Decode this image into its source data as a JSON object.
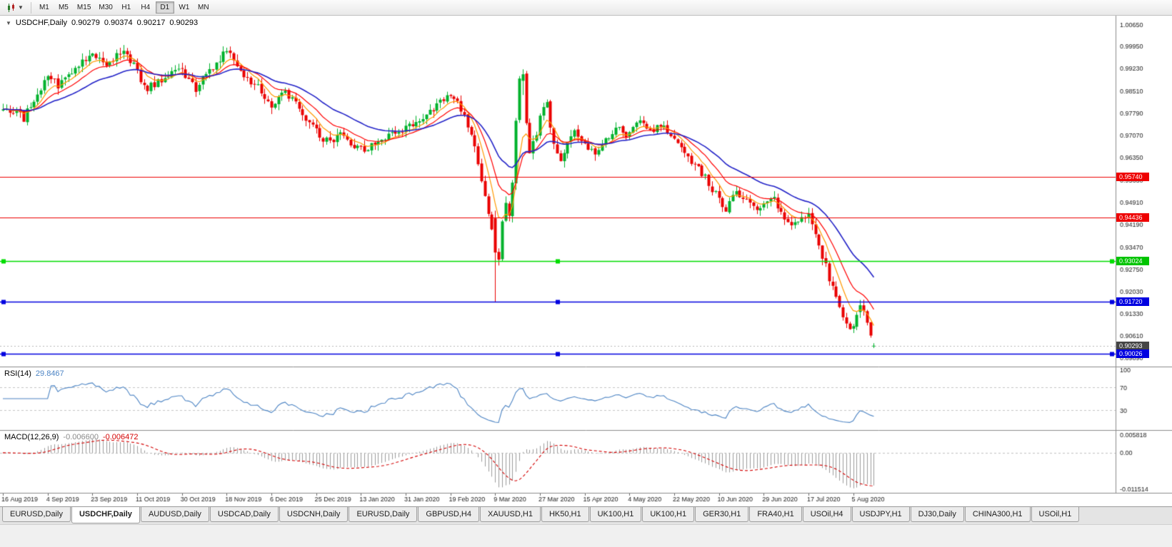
{
  "toolbar": {
    "timeframes": [
      "M1",
      "M5",
      "M15",
      "M30",
      "H1",
      "H4",
      "D1",
      "W1",
      "MN"
    ],
    "active_timeframe": "D1"
  },
  "chart_header": {
    "symbol": "USDCHF,Daily",
    "open": "0.90279",
    "high": "0.90374",
    "low": "0.90217",
    "close": "0.90293"
  },
  "price_axis": {
    "ticks": [
      "1.00650",
      "0.99950",
      "0.99230",
      "0.98510",
      "0.97790",
      "0.97070",
      "0.96350",
      "0.95630",
      "0.94910",
      "0.94190",
      "0.93470",
      "0.92750",
      "0.92030",
      "0.91330",
      "0.90610",
      "0.89890"
    ],
    "badges": [
      {
        "value": "0.95740",
        "color": "#EE0000",
        "kind": "horizontal-line"
      },
      {
        "value": "0.94436",
        "color": "#EE0000",
        "kind": "horizontal-line"
      },
      {
        "value": "0.93024",
        "color": "#00C400",
        "kind": "horizontal-line"
      },
      {
        "value": "0.91720",
        "color": "#0000E0",
        "kind": "horizontal-line"
      },
      {
        "value": "0.90293",
        "color": "#454545",
        "kind": "last-price"
      },
      {
        "value": "0.90026",
        "color": "#0000E0",
        "kind": "horizontal-line"
      }
    ]
  },
  "rsi": {
    "label": "RSI(14)",
    "value": "29.8467",
    "ticks": [
      "100",
      "70",
      "30"
    ],
    "levels": [
      70,
      30
    ],
    "range": [
      0,
      100
    ],
    "line_color": "#4C84C4"
  },
  "macd": {
    "label": "MACD(12,26,9)",
    "main_value": "-0.006600",
    "signal_value": "-0.006472",
    "ticks": [
      {
        "text": "0.005818",
        "v": 0.005818
      },
      {
        "text": "0.00",
        "v": 0
      },
      {
        "text": "-0.011514",
        "v": -0.011514
      }
    ],
    "range": [
      -0.011514,
      0.005818
    ],
    "histogram_color": "#9C9C9C",
    "signal_color": "#D40000"
  },
  "time_axis": {
    "labels": [
      "16 Aug 2019",
      "4 Sep 2019",
      "23 Sep 2019",
      "11 Oct 2019",
      "30 Oct 2019",
      "18 Nov 2019",
      "6 Dec 2019",
      "25 Dec 2019",
      "13 Jan 2020",
      "31 Jan 2020",
      "19 Feb 2020",
      "9 Mar 2020",
      "27 Mar 2020",
      "15 Apr 2020",
      "4 May 2020",
      "22 May 2020",
      "10 Jun 2020",
      "29 Jun 2020",
      "17 Jul 2020",
      "5 Aug 2020"
    ]
  },
  "chart_data": {
    "type": "candlestick",
    "symbol": "USDCHF",
    "period": "Daily",
    "n_bars": 254,
    "bar_spacing": 4.82,
    "price_range": [
      0.8962,
      1.0094
    ],
    "up_color": "#00B22C",
    "down_color": "#EA0000",
    "x_label_step_bars": 13,
    "waypoints": [
      [
        0,
        0.98
      ],
      [
        2,
        0.977
      ],
      [
        4,
        0.9785
      ],
      [
        6,
        0.976
      ],
      [
        8,
        0.981
      ],
      [
        10,
        0.9845
      ],
      [
        13,
        0.9895
      ],
      [
        16,
        0.987
      ],
      [
        19,
        0.99
      ],
      [
        22,
        0.9935
      ],
      [
        26,
        0.9985
      ],
      [
        28,
        0.995
      ],
      [
        30,
        0.992
      ],
      [
        32,
        0.995
      ],
      [
        34,
        0.998
      ],
      [
        37,
        0.995
      ],
      [
        39,
        0.9915
      ],
      [
        41,
        0.986
      ],
      [
        44,
        0.987
      ],
      [
        47,
        0.9895
      ],
      [
        50,
        0.9915
      ],
      [
        52,
        0.993
      ],
      [
        54,
        0.988
      ],
      [
        56,
        0.986
      ],
      [
        58,
        0.9895
      ],
      [
        60,
        0.9915
      ],
      [
        63,
        0.995
      ],
      [
        65,
        0.9985
      ],
      [
        67,
        0.995
      ],
      [
        69,
        0.992
      ],
      [
        72,
        0.988
      ],
      [
        75,
        0.985
      ],
      [
        78,
        0.98
      ],
      [
        80,
        0.983
      ],
      [
        82,
        0.9855
      ],
      [
        85,
        0.9805
      ],
      [
        88,
        0.976
      ],
      [
        91,
        0.9725
      ],
      [
        93,
        0.97
      ],
      [
        95,
        0.9685
      ],
      [
        98,
        0.9705
      ],
      [
        101,
        0.968
      ],
      [
        104,
        0.966
      ],
      [
        107,
        0.9675
      ],
      [
        110,
        0.97
      ],
      [
        113,
        0.9715
      ],
      [
        117,
        0.973
      ],
      [
        120,
        0.9755
      ],
      [
        124,
        0.9785
      ],
      [
        127,
        0.9815
      ],
      [
        130,
        0.9845
      ],
      [
        132,
        0.9815
      ],
      [
        134,
        0.9765
      ],
      [
        136,
        0.97
      ],
      [
        138,
        0.962
      ],
      [
        140,
        0.952
      ],
      [
        142,
        0.94
      ],
      [
        143,
        0.933
      ],
      [
        144,
        0.93
      ],
      [
        145,
        0.942
      ],
      [
        146,
        0.948
      ],
      [
        147,
        0.944
      ],
      [
        148,
        0.956
      ],
      [
        149,
        0.9765
      ],
      [
        150,
        0.988
      ],
      [
        151,
        0.9905
      ],
      [
        152,
        0.976
      ],
      [
        153,
        0.965
      ],
      [
        155,
        0.972
      ],
      [
        156,
        0.978
      ],
      [
        158,
        0.9805
      ],
      [
        160,
        0.9685
      ],
      [
        162,
        0.9625
      ],
      [
        164,
        0.968
      ],
      [
        166,
        0.973
      ],
      [
        169,
        0.968
      ],
      [
        172,
        0.9655
      ],
      [
        175,
        0.97
      ],
      [
        178,
        0.973
      ],
      [
        182,
        0.971
      ],
      [
        185,
        0.975
      ],
      [
        188,
        0.972
      ],
      [
        191,
        0.974
      ],
      [
        195,
        0.97
      ],
      [
        198,
        0.9645
      ],
      [
        201,
        0.961
      ],
      [
        204,
        0.957
      ],
      [
        208,
        0.95
      ],
      [
        210,
        0.947
      ],
      [
        213,
        0.953
      ],
      [
        216,
        0.95
      ],
      [
        219,
        0.946
      ],
      [
        221,
        0.948
      ],
      [
        224,
        0.95
      ],
      [
        227,
        0.9445
      ],
      [
        230,
        0.942
      ],
      [
        234,
        0.945
      ],
      [
        236,
        0.94
      ],
      [
        238,
        0.932
      ],
      [
        240,
        0.925
      ],
      [
        242,
        0.919
      ],
      [
        244,
        0.913
      ],
      [
        246,
        0.907
      ],
      [
        247,
        0.9085
      ],
      [
        248,
        0.913
      ],
      [
        249,
        0.916
      ],
      [
        250,
        0.9145
      ],
      [
        251,
        0.911
      ],
      [
        252,
        0.907
      ],
      [
        253,
        0.90293
      ]
    ],
    "overrides": {
      "143": {
        "o": 0.944,
        "h": 0.9465,
        "l": 0.917,
        "c": 0.933
      },
      "151": {
        "o": 0.9884,
        "h": 0.9921,
        "l": 0.9838,
        "c": 0.9905
      },
      "249": {
        "o": 0.9138,
        "h": 0.9177,
        "l": 0.9119,
        "c": 0.916
      },
      "253": {
        "o": 0.90279,
        "h": 0.90374,
        "l": 0.90217,
        "c": 0.90293
      }
    },
    "moving_averages": [
      {
        "period": 7,
        "color": "#FF9900"
      },
      {
        "period": 14,
        "color": "#FF0000"
      },
      {
        "period": 30,
        "color": "#2323C8"
      }
    ],
    "horizontal_lines": [
      {
        "price": 0.9574,
        "color": "#EE0000",
        "selected": false
      },
      {
        "price": 0.94436,
        "color": "#EE0000",
        "selected": false
      },
      {
        "price": 0.93024,
        "color": "#00DD00",
        "selected": true
      },
      {
        "price": 0.9172,
        "color": "#0000E0",
        "selected": true
      },
      {
        "price": 0.90026,
        "color": "#0000E0",
        "selected": true
      }
    ],
    "last_price": 0.90293,
    "indicators": {
      "rsi_period": 14,
      "macd": [
        12,
        26,
        9
      ]
    }
  },
  "tabs": [
    {
      "label": "EURUSD,Daily",
      "active": false
    },
    {
      "label": "USDCHF,Daily",
      "active": true
    },
    {
      "label": "AUDUSD,Daily",
      "active": false
    },
    {
      "label": "USDCAD,Daily",
      "active": false
    },
    {
      "label": "USDCNH,Daily",
      "active": false
    },
    {
      "label": "EURUSD,Daily",
      "active": false
    },
    {
      "label": "GBPUSD,H4",
      "active": false
    },
    {
      "label": "XAUUSD,H1",
      "active": false
    },
    {
      "label": "HK50,H1",
      "active": false
    },
    {
      "label": "UK100,H1",
      "active": false
    },
    {
      "label": "UK100,H1",
      "active": false
    },
    {
      "label": "GER30,H1",
      "active": false
    },
    {
      "label": "FRA40,H1",
      "active": false
    },
    {
      "label": "USOil,H4",
      "active": false
    },
    {
      "label": "USDJPY,H1",
      "active": false
    },
    {
      "label": "DJ30,Daily",
      "active": false
    },
    {
      "label": "CHINA300,H1",
      "active": false
    },
    {
      "label": "USOil,H1",
      "active": false
    }
  ]
}
